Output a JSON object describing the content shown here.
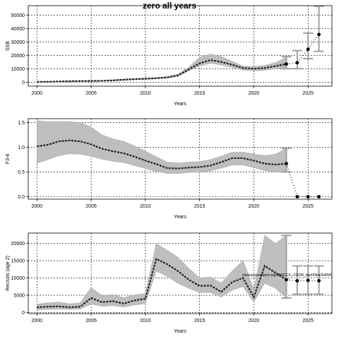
{
  "title": "zero all years",
  "colors": {
    "band": "#bebebe",
    "band_edge": "#a8a8a8",
    "line": "#222222",
    "forecast_bar": "#a0a0a0",
    "grid": "#000000",
    "point": "#000000"
  },
  "chart_data": [
    {
      "type": "line",
      "ylabel": "SSB",
      "xlabel": "Years",
      "xlim": [
        1999.2,
        2027.2
      ],
      "ylim": [
        -3000,
        57000
      ],
      "x_ticks": [
        2000,
        2005,
        2010,
        2015,
        2020,
        2025
      ],
      "y_ticks": [
        0,
        10000,
        20000,
        30000,
        40000,
        50000
      ],
      "grid": true,
      "series": [
        {
          "x": [
            2000,
            2001,
            2002,
            2003,
            2004,
            2005,
            2006,
            2007,
            2008,
            2009,
            2010,
            2011,
            2012,
            2013,
            2014,
            2015,
            2016,
            2017,
            2018,
            2019,
            2020,
            2021,
            2022,
            2023
          ],
          "values": [
            200,
            300,
            500,
            700,
            800,
            900,
            1000,
            1300,
            1800,
            2200,
            2500,
            2900,
            3500,
            5000,
            9500,
            14000,
            16500,
            15000,
            13000,
            10500,
            10000,
            10500,
            12000,
            13500
          ],
          "lower": [
            100,
            150,
            300,
            450,
            550,
            650,
            750,
            1000,
            1400,
            1800,
            2100,
            2500,
            3000,
            4300,
            8300,
            12000,
            14000,
            12800,
            11000,
            9000,
            8500,
            8800,
            10000,
            11000
          ],
          "upper": [
            300,
            450,
            700,
            950,
            1050,
            1150,
            1300,
            1700,
            2300,
            2700,
            3000,
            3400,
            4100,
            5900,
            11000,
            18500,
            21000,
            19000,
            15500,
            12000,
            11500,
            12500,
            14500,
            18500
          ]
        }
      ],
      "forecast": {
        "x": [
          2023,
          2024,
          2025,
          2026
        ],
        "values": [
          13500,
          14500,
          24500,
          35500
        ],
        "lower": [
          10000,
          10000,
          17500,
          23000
        ],
        "upper": [
          19000,
          23500,
          36500,
          56500
        ]
      }
    },
    {
      "type": "line",
      "ylabel": "F3-8",
      "xlabel": "Years",
      "xlim": [
        1999.2,
        2027.2
      ],
      "ylim": [
        -0.05,
        1.58
      ],
      "x_ticks": [
        2000,
        2005,
        2010,
        2015,
        2020,
        2025
      ],
      "y_ticks": [
        0.0,
        0.5,
        1.0,
        1.5
      ],
      "grid": true,
      "series": [
        {
          "x": [
            2000,
            2001,
            2002,
            2003,
            2004,
            2005,
            2006,
            2007,
            2008,
            2009,
            2010,
            2011,
            2012,
            2013,
            2014,
            2015,
            2016,
            2017,
            2018,
            2019,
            2020,
            2021,
            2022,
            2023
          ],
          "values": [
            1.02,
            1.05,
            1.12,
            1.14,
            1.12,
            1.06,
            0.97,
            0.92,
            0.88,
            0.81,
            0.73,
            0.66,
            0.58,
            0.57,
            0.59,
            0.6,
            0.63,
            0.7,
            0.78,
            0.78,
            0.73,
            0.67,
            0.65,
            0.67
          ],
          "lower": [
            0.68,
            0.75,
            0.83,
            0.87,
            0.86,
            0.82,
            0.76,
            0.72,
            0.69,
            0.63,
            0.57,
            0.51,
            0.47,
            0.47,
            0.49,
            0.5,
            0.52,
            0.58,
            0.64,
            0.64,
            0.59,
            0.53,
            0.5,
            0.5
          ],
          "upper": [
            1.54,
            1.52,
            1.52,
            1.52,
            1.5,
            1.41,
            1.25,
            1.17,
            1.12,
            1.03,
            0.92,
            0.81,
            0.7,
            0.68,
            0.7,
            0.71,
            0.75,
            0.82,
            0.9,
            0.9,
            0.86,
            0.83,
            0.86,
            0.98
          ]
        }
      ],
      "forecast": {
        "x": [
          2023,
          2024,
          2025,
          2026
        ],
        "values": [
          0.67,
          0.0,
          0.0,
          0.0
        ],
        "lower": [
          0.5,
          0.0,
          0.0,
          0.0
        ],
        "upper": [
          0.98,
          0.0,
          0.0,
          0.0
        ]
      }
    },
    {
      "type": "line",
      "ylabel": "Recruits (age 2)",
      "xlabel": "Years",
      "xlim": [
        1999.2,
        2027.2
      ],
      "ylim": [
        -300,
        23000
      ],
      "x_ticks": [
        2000,
        2005,
        2010,
        2015,
        2020,
        2025
      ],
      "y_ticks": [
        0,
        5000,
        10000,
        15000,
        20000
      ],
      "grid": true,
      "annotation": "stockassessment.org/WWGCS_r10108_dep00bla2b4090",
      "series": [
        {
          "x": [
            2000,
            2001,
            2002,
            2003,
            2004,
            2005,
            2006,
            2007,
            2008,
            2009,
            2010,
            2011,
            2012,
            2013,
            2014,
            2015,
            2016,
            2017,
            2018,
            2019,
            2020,
            2021,
            2022,
            2023
          ],
          "values": [
            1500,
            1700,
            1800,
            1500,
            1700,
            4200,
            3000,
            3300,
            2600,
            3500,
            4000,
            15500,
            14000,
            12000,
            9500,
            7700,
            7800,
            6000,
            8800,
            10000,
            4500,
            13500,
            11500,
            9500
          ],
          "lower": [
            800,
            900,
            1000,
            900,
            1000,
            2500,
            1800,
            2000,
            1600,
            2200,
            2600,
            12000,
            10500,
            8500,
            7000,
            5800,
            5800,
            4500,
            6500,
            7500,
            3000,
            8500,
            7000,
            4200
          ],
          "upper": [
            2400,
            2800,
            3000,
            2500,
            2800,
            7200,
            4900,
            5200,
            4300,
            5100,
            5500,
            20000,
            18000,
            16000,
            12800,
            10000,
            10300,
            8500,
            12000,
            15000,
            6800,
            22300,
            20000,
            22300
          ]
        }
      ],
      "forecast": {
        "x": [
          2023,
          2024,
          2025,
          2026
        ],
        "values": [
          9500,
          9200,
          9300,
          9200
        ],
        "lower": [
          4200,
          5300,
          5300,
          5300
        ],
        "upper": [
          22300,
          13500,
          13500,
          13500
        ]
      }
    }
  ]
}
